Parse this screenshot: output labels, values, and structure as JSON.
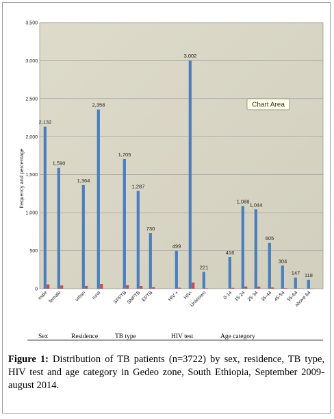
{
  "chart_data": {
    "type": "bar",
    "ylabel": "frequency and percentage",
    "ylim": [
      0,
      3500
    ],
    "yticks": [
      "0",
      "500",
      "1,000",
      "1,500",
      "2,000",
      "2,500",
      "3,000",
      "3,500"
    ],
    "grid": true,
    "groups": [
      "Sex",
      "Residence",
      "TB type",
      "HIV test",
      "Age category"
    ],
    "categories": [
      {
        "label": "male",
        "group": 0,
        "value": 2132,
        "text": "2,132",
        "pct": 57
      },
      {
        "label": "female",
        "group": 0,
        "value": 1590,
        "text": "1,590",
        "pct": 43
      },
      {
        "label": "urban",
        "group": 1,
        "value": 1364,
        "text": "1,364",
        "pct": 37
      },
      {
        "label": "rural",
        "group": 1,
        "value": 2358,
        "text": "2,358",
        "pct": 63
      },
      {
        "label": "SPPTB",
        "group": 2,
        "value": 1705,
        "text": "1,705",
        "pct": 46
      },
      {
        "label": "SNPTB",
        "group": 2,
        "value": 1287,
        "text": "1,287",
        "pct": 35
      },
      {
        "label": "EPTB",
        "group": 2,
        "value": 730,
        "text": "730",
        "pct": 20
      },
      {
        "label": "HIV +",
        "group": 3,
        "value": 499,
        "text": "499",
        "pct": 13
      },
      {
        "label": "HIV-",
        "group": 3,
        "value": 3002,
        "text": "3,002",
        "pct": 81
      },
      {
        "label": "Unknown",
        "group": 3,
        "value": 221,
        "text": "221",
        "pct": 6
      },
      {
        "label": "0-14",
        "group": 4,
        "value": 416,
        "text": "416",
        "pct": 11
      },
      {
        "label": "15-24",
        "group": 4,
        "value": 1088,
        "text": "1,088",
        "pct": 29
      },
      {
        "label": "25-34",
        "group": 4,
        "value": 1044,
        "text": "1,044",
        "pct": 28
      },
      {
        "label": "35-44",
        "group": 4,
        "value": 605,
        "text": "605",
        "pct": 16
      },
      {
        "label": "45-54",
        "group": 4,
        "value": 304,
        "text": "304",
        "pct": 8
      },
      {
        "label": "55-64",
        "group": 4,
        "value": 147,
        "text": "147",
        "pct": 4
      },
      {
        "label": "above 64",
        "group": 4,
        "value": 118,
        "text": "118",
        "pct": 3
      }
    ],
    "tooltip": "Chart Area"
  },
  "colors": {
    "plot_bg": "#d8d5c5",
    "frequency_bar": "#4a7ebf",
    "percentage_bar": "#c0504d",
    "grid": "#9a9a9a"
  },
  "caption": {
    "label": "Figure 1:",
    "text": " Distribution of TB patients (n=3722) by sex, residence, TB type, HIV test and age category in Gedeo zone, South Ethiopia, September 2009-august 2014."
  }
}
